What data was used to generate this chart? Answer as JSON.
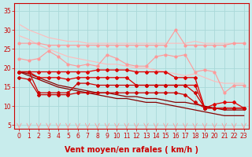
{
  "bg_color": "#c8ecec",
  "grid_color": "#aad8d8",
  "xlabel": "Vent moyen/en rafales ( km/h )",
  "xlim": [
    -0.5,
    23.5
  ],
  "ylim": [
    4,
    37
  ],
  "yticks": [
    5,
    10,
    15,
    20,
    25,
    30,
    35
  ],
  "xticks": [
    0,
    1,
    2,
    3,
    4,
    5,
    6,
    7,
    8,
    9,
    10,
    11,
    12,
    13,
    14,
    15,
    16,
    17,
    18,
    19,
    20,
    21,
    22,
    23
  ],
  "x": [
    0,
    1,
    2,
    3,
    4,
    5,
    6,
    7,
    8,
    9,
    10,
    11,
    12,
    13,
    14,
    15,
    16,
    17,
    18,
    19,
    20,
    21,
    22,
    23
  ],
  "line1_color": "#ffbbbb",
  "line1": [
    31.5,
    30.0,
    29.0,
    28.0,
    27.5,
    27.0,
    27.0,
    26.5,
    26.5,
    26.5,
    26.5,
    26.5,
    26.5,
    26.5,
    26.5,
    26.5,
    26.5,
    26.5,
    27.0,
    26.5,
    26.5,
    26.5,
    26.5,
    26.5
  ],
  "line2_color": "#ffbbbb",
  "line2": [
    28.5,
    27.5,
    26.0,
    25.0,
    24.0,
    23.0,
    22.5,
    22.0,
    21.5,
    21.0,
    21.0,
    20.5,
    20.0,
    20.0,
    19.5,
    19.0,
    18.5,
    18.0,
    18.5,
    17.5,
    16.5,
    16.0,
    16.0,
    16.0
  ],
  "line3_color": "#ff9999",
  "line3": [
    26.5,
    26.5,
    26.5,
    26.0,
    26.0,
    26.0,
    26.0,
    26.0,
    26.0,
    26.0,
    26.0,
    26.0,
    26.0,
    26.0,
    26.0,
    26.0,
    30.0,
    26.0,
    26.0,
    26.0,
    26.0,
    26.0,
    26.5,
    26.5
  ],
  "line4_color": "#ff9999",
  "line4": [
    22.5,
    22.0,
    22.5,
    24.5,
    23.0,
    21.0,
    20.5,
    21.0,
    20.5,
    23.5,
    22.5,
    21.0,
    20.5,
    20.5,
    23.0,
    23.5,
    23.0,
    23.5,
    19.0,
    19.5,
    19.0,
    13.5,
    15.5,
    15.5
  ],
  "line5_color": "#dd0000",
  "line5": [
    19.0,
    19.0,
    19.0,
    19.0,
    19.0,
    19.0,
    19.0,
    19.0,
    19.5,
    19.5,
    19.5,
    19.5,
    19.0,
    19.0,
    19.0,
    19.0,
    17.5,
    17.5,
    17.5,
    9.5,
    10.5,
    11.0,
    11.0,
    9.5
  ],
  "line6_color": "#dd0000",
  "line6": [
    19.0,
    19.0,
    17.5,
    17.5,
    17.5,
    17.0,
    17.5,
    17.5,
    17.5,
    17.5,
    17.5,
    17.5,
    15.5,
    15.5,
    15.5,
    15.5,
    15.5,
    15.5,
    15.5,
    9.5,
    9.5,
    9.5,
    9.5,
    9.5
  ],
  "line7_color": "#cc0000",
  "line7": [
    19.0,
    19.0,
    13.5,
    13.5,
    13.5,
    13.5,
    16.0,
    16.0,
    15.5,
    15.5,
    15.5,
    15.5,
    15.5,
    15.5,
    15.5,
    15.5,
    15.5,
    15.5,
    13.5,
    9.5,
    9.5,
    9.5,
    9.5,
    9.5
  ],
  "line8_color": "#cc0000",
  "line8": [
    17.5,
    17.0,
    13.0,
    13.0,
    13.0,
    13.0,
    13.5,
    13.5,
    13.5,
    13.5,
    13.5,
    13.5,
    13.5,
    13.5,
    13.5,
    13.5,
    13.5,
    13.0,
    11.0,
    9.5,
    9.5,
    9.5,
    9.5,
    9.5
  ],
  "line9_color": "#880000",
  "line9": [
    19.0,
    18.5,
    17.5,
    16.5,
    15.5,
    15.0,
    14.5,
    14.0,
    13.5,
    13.5,
    13.0,
    12.5,
    12.5,
    12.0,
    12.0,
    11.5,
    11.0,
    11.0,
    10.5,
    10.0,
    9.5,
    9.0,
    9.0,
    9.0
  ],
  "line10_color": "#880000",
  "line10": [
    19.0,
    18.0,
    17.0,
    16.0,
    15.0,
    14.5,
    14.0,
    13.5,
    13.0,
    12.5,
    12.0,
    12.0,
    11.5,
    11.0,
    11.0,
    10.5,
    10.0,
    9.5,
    9.0,
    8.5,
    8.0,
    7.5,
    7.5,
    7.5
  ],
  "tick_fontsize": 5.5,
  "label_fontsize": 7
}
